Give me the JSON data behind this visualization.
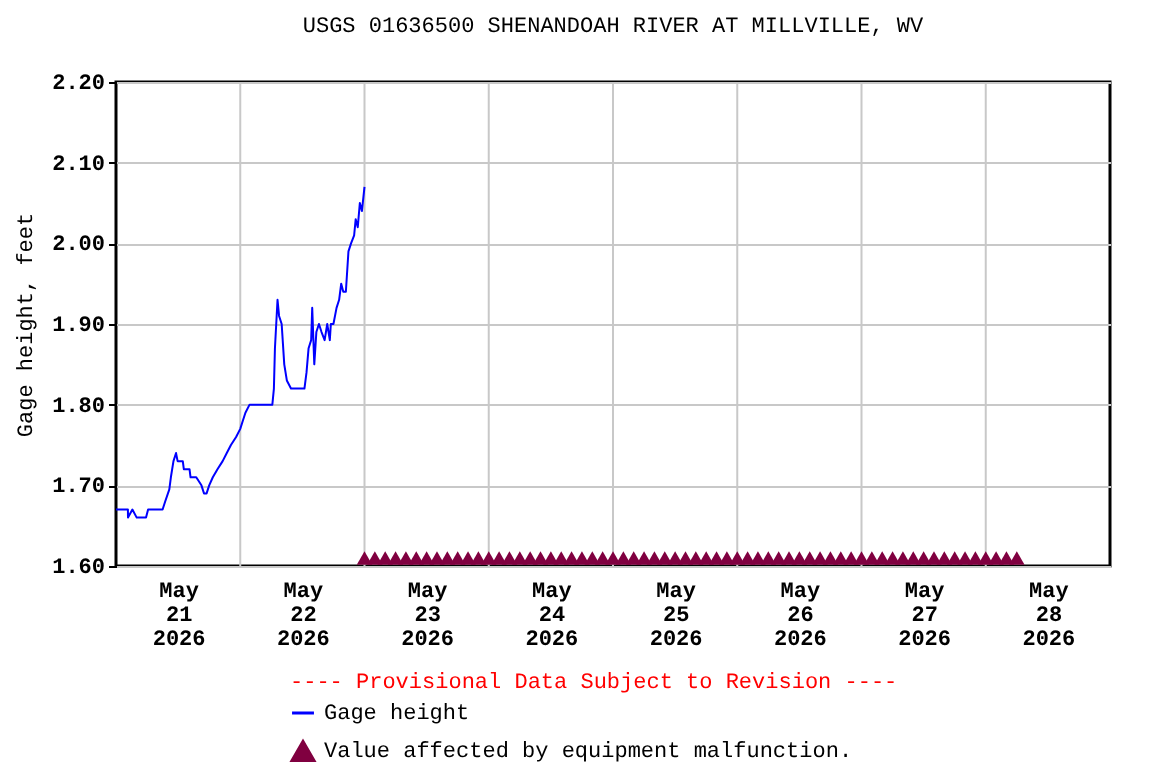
{
  "chart_data": {
    "type": "line",
    "title": "USGS 01636500 SHENANDOAH RIVER AT MILLVILLE, WV",
    "ylabel": "Gage height, feet",
    "annotations": [
      "---- Provisional Data Subject to Revision ----"
    ],
    "x": [
      "2026-05-21T00:00",
      "2026-05-21T02:18",
      "2026-05-21T02:19",
      "2026-05-21T03:10",
      "2026-05-21T04:00",
      "2026-05-21T05:48",
      "2026-05-21T06:12",
      "2026-05-21T09:00",
      "2026-05-21T09:30",
      "2026-05-21T10:18",
      "2026-05-21T10:36",
      "2026-05-21T11:06",
      "2026-05-21T11:36",
      "2026-05-21T11:54",
      "2026-05-21T12:54",
      "2026-05-21T13:06",
      "2026-05-21T14:12",
      "2026-05-21T14:24",
      "2026-05-21T15:30",
      "2026-05-21T16:30",
      "2026-05-21T17:00",
      "2026-05-21T17:30",
      "2026-05-21T18:00",
      "2026-05-21T18:42",
      "2026-05-21T19:36",
      "2026-05-21T20:36",
      "2026-05-21T21:24",
      "2026-05-21T22:12",
      "2026-05-21T23:12",
      "2026-05-22T00:00",
      "2026-05-22T00:30",
      "2026-05-22T01:00",
      "2026-05-22T01:48",
      "2026-05-22T06:12",
      "2026-05-22T06:30",
      "2026-05-22T06:42",
      "2026-05-22T07:12",
      "2026-05-22T07:30",
      "2026-05-22T08:00",
      "2026-05-22T08:30",
      "2026-05-22T09:00",
      "2026-05-22T09:48",
      "2026-05-22T10:36",
      "2026-05-22T12:24",
      "2026-05-22T12:48",
      "2026-05-22T13:12",
      "2026-05-22T13:42",
      "2026-05-22T13:54",
      "2026-05-22T14:18",
      "2026-05-22T14:42",
      "2026-05-22T15:12",
      "2026-05-22T15:42",
      "2026-05-22T16:18",
      "2026-05-22T16:48",
      "2026-05-22T17:18",
      "2026-05-22T17:30",
      "2026-05-22T18:00",
      "2026-05-22T18:36",
      "2026-05-22T19:06",
      "2026-05-22T19:30",
      "2026-05-22T19:54",
      "2026-05-22T20:24",
      "2026-05-22T20:54",
      "2026-05-22T21:24",
      "2026-05-22T22:00",
      "2026-05-22T22:18",
      "2026-05-22T22:42",
      "2026-05-22T23:06",
      "2026-05-22T23:30",
      "2026-05-23T00:00"
    ],
    "series": [
      {
        "name": "Gage height",
        "color": "#0000ff",
        "values": [
          1.67,
          1.67,
          1.66,
          1.67,
          1.66,
          1.66,
          1.67,
          1.67,
          1.68,
          1.695,
          1.71,
          1.73,
          1.74,
          1.73,
          1.73,
          1.72,
          1.72,
          1.71,
          1.71,
          1.7,
          1.69,
          1.69,
          1.7,
          1.71,
          1.72,
          1.73,
          1.74,
          1.75,
          1.76,
          1.77,
          1.78,
          1.79,
          1.8,
          1.8,
          1.82,
          1.87,
          1.93,
          1.91,
          1.9,
          1.85,
          1.83,
          1.82,
          1.82,
          1.82,
          1.84,
          1.87,
          1.88,
          1.92,
          1.85,
          1.89,
          1.9,
          1.89,
          1.88,
          1.9,
          1.88,
          1.9,
          1.9,
          1.92,
          1.93,
          1.95,
          1.94,
          1.94,
          1.99,
          2.0,
          2.01,
          2.03,
          2.02,
          2.05,
          2.04,
          2.07
        ]
      },
      {
        "name": "Value affected by equipment malfunction.",
        "type": "scatter",
        "marker": "triangle",
        "color": "#800040",
        "x": [
          "2026-05-23T00:00",
          "2026-05-23T02:00",
          "2026-05-23T04:00",
          "2026-05-23T06:00",
          "2026-05-23T08:00",
          "2026-05-23T10:00",
          "2026-05-23T12:00",
          "2026-05-23T14:00",
          "2026-05-23T16:00",
          "2026-05-23T18:00",
          "2026-05-23T20:00",
          "2026-05-23T22:00",
          "2026-05-24T00:00",
          "2026-05-24T02:00",
          "2026-05-24T04:00",
          "2026-05-24T06:00",
          "2026-05-24T08:00",
          "2026-05-24T10:00",
          "2026-05-24T12:00",
          "2026-05-24T14:00",
          "2026-05-24T16:00",
          "2026-05-24T18:00",
          "2026-05-24T20:00",
          "2026-05-24T22:00",
          "2026-05-25T00:00",
          "2026-05-25T02:00",
          "2026-05-25T04:00",
          "2026-05-25T06:00",
          "2026-05-25T08:00",
          "2026-05-25T10:00",
          "2026-05-25T12:00",
          "2026-05-25T14:00",
          "2026-05-25T16:00",
          "2026-05-25T18:00",
          "2026-05-25T20:00",
          "2026-05-25T22:00",
          "2026-05-26T00:00",
          "2026-05-26T02:00",
          "2026-05-26T04:00",
          "2026-05-26T06:00",
          "2026-05-26T08:00",
          "2026-05-26T10:00",
          "2026-05-26T12:00",
          "2026-05-26T14:00",
          "2026-05-26T16:00",
          "2026-05-26T18:00",
          "2026-05-26T20:00",
          "2026-05-26T22:00",
          "2026-05-27T00:00",
          "2026-05-27T02:00",
          "2026-05-27T04:00",
          "2026-05-27T06:00",
          "2026-05-27T08:00",
          "2026-05-27T10:00",
          "2026-05-27T12:00",
          "2026-05-27T14:00",
          "2026-05-27T16:00",
          "2026-05-27T18:00",
          "2026-05-27T20:00",
          "2026-05-27T22:00",
          "2026-05-28T00:00",
          "2026-05-28T02:00",
          "2026-05-28T04:00",
          "2026-05-28T06:00"
        ],
        "values": [
          1.61,
          1.61,
          1.61,
          1.61,
          1.61,
          1.61,
          1.61,
          1.61,
          1.61,
          1.61,
          1.61,
          1.61,
          1.61,
          1.61,
          1.61,
          1.61,
          1.61,
          1.61,
          1.61,
          1.61,
          1.61,
          1.61,
          1.61,
          1.61,
          1.61,
          1.61,
          1.61,
          1.61,
          1.61,
          1.61,
          1.61,
          1.61,
          1.61,
          1.61,
          1.61,
          1.61,
          1.61,
          1.61,
          1.61,
          1.61,
          1.61,
          1.61,
          1.61,
          1.61,
          1.61,
          1.61,
          1.61,
          1.61,
          1.61,
          1.61,
          1.61,
          1.61,
          1.61,
          1.61,
          1.61,
          1.61,
          1.61,
          1.61,
          1.61,
          1.61,
          1.61,
          1.61,
          1.61,
          1.61
        ]
      }
    ],
    "xlim": [
      "2026-05-21T00:00",
      "2026-05-29T00:00"
    ],
    "xticks": [
      {
        "value": "2026-05-21T12:00",
        "label": "May\n21\n2026"
      },
      {
        "value": "2026-05-22T12:00",
        "label": "May\n22\n2026"
      },
      {
        "value": "2026-05-23T12:00",
        "label": "May\n23\n2026"
      },
      {
        "value": "2026-05-24T12:00",
        "label": "May\n24\n2026"
      },
      {
        "value": "2026-05-25T12:00",
        "label": "May\n25\n2026"
      },
      {
        "value": "2026-05-26T12:00",
        "label": "May\n26\n2026"
      },
      {
        "value": "2026-05-27T12:00",
        "label": "May\n27\n2026"
      },
      {
        "value": "2026-05-28T12:00",
        "label": "May\n28\n2026"
      },
      {
        "value": "2026-05-22T00:00",
        "label": null
      },
      {
        "value": "2026-05-23T00:00",
        "label": null
      },
      {
        "value": "2026-05-24T00:00",
        "label": null
      },
      {
        "value": "2026-05-25T00:00",
        "label": null
      },
      {
        "value": "2026-05-26T00:00",
        "label": null
      },
      {
        "value": "2026-05-27T00:00",
        "label": null
      },
      {
        "value": "2026-05-28T00:00",
        "label": null
      }
    ],
    "ylim": [
      1.6,
      2.2
    ],
    "yticks": [
      {
        "value": 1.6,
        "label": "1.60"
      },
      {
        "value": 1.7,
        "label": "1.70"
      },
      {
        "value": 1.8,
        "label": "1.80"
      },
      {
        "value": 1.9,
        "label": "1.90"
      },
      {
        "value": 2.0,
        "label": "2.00"
      },
      {
        "value": 2.1,
        "label": "2.10"
      },
      {
        "value": 2.2,
        "label": "2.20"
      }
    ],
    "grid": true,
    "legend": "bottom",
    "marker": "none",
    "line_style": "solid"
  }
}
